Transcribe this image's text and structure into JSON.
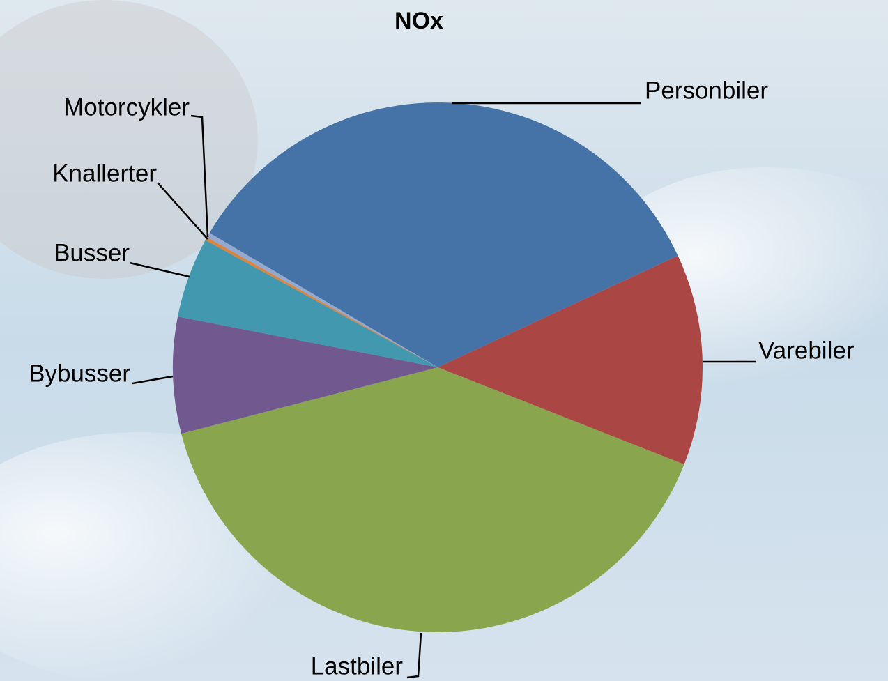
{
  "chart_data": {
    "type": "pie",
    "title": "NOx",
    "categories": [
      "Personbiler",
      "Varebiler",
      "Lastbiler",
      "Bybusser",
      "Busser",
      "Knallerter",
      "Motorcykler"
    ],
    "values": [
      34.6,
      12.9,
      40.0,
      7.1,
      4.9,
      0.2,
      0.3
    ],
    "colors": [
      "#4572a7",
      "#aa4643",
      "#89a54e",
      "#71588f",
      "#4198af",
      "#db843d",
      "#93a9cf"
    ]
  }
}
